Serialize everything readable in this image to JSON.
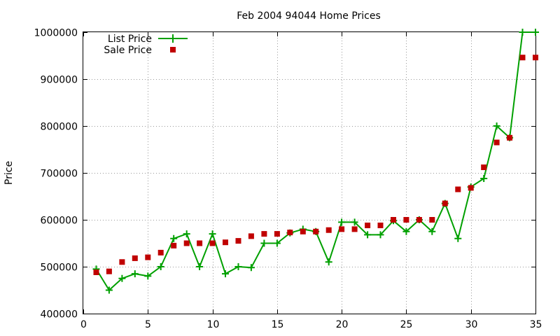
{
  "chart_data": {
    "type": "line",
    "title": "Feb 2004 94044 Home Prices",
    "xlabel": "",
    "ylabel": "Price",
    "xlim": [
      0,
      35
    ],
    "ylim": [
      400000,
      1000000
    ],
    "xticks": [
      0,
      5,
      10,
      15,
      20,
      25,
      30,
      35
    ],
    "yticks": [
      400000,
      500000,
      600000,
      700000,
      800000,
      900000,
      1000000
    ],
    "grid": true,
    "legend_position": "top-left",
    "series": [
      {
        "name": "List Price",
        "style": "linespoints",
        "color": "#00a000",
        "marker": "plus",
        "x": [
          1,
          2,
          3,
          4,
          5,
          6,
          7,
          8,
          9,
          10,
          11,
          12,
          13,
          14,
          15,
          16,
          17,
          18,
          19,
          20,
          21,
          22,
          23,
          24,
          25,
          26,
          27,
          28,
          29,
          30,
          31,
          32,
          33,
          34,
          35
        ],
        "values": [
          495000,
          450000,
          475000,
          485000,
          480000,
          500000,
          560000,
          570000,
          500000,
          570000,
          485000,
          500000,
          498000,
          550000,
          550000,
          572000,
          580000,
          575000,
          510000,
          595000,
          595000,
          568000,
          568000,
          598000,
          575000,
          600000,
          575000,
          635000,
          560000,
          670000,
          688000,
          800000,
          775000,
          1000000,
          1000000
        ]
      },
      {
        "name": "Sale Price",
        "style": "points",
        "color": "#c00000",
        "marker": "square",
        "x": [
          1,
          2,
          3,
          4,
          5,
          6,
          7,
          8,
          9,
          10,
          11,
          12,
          13,
          14,
          15,
          16,
          17,
          18,
          19,
          20,
          21,
          22,
          23,
          24,
          25,
          26,
          27,
          28,
          29,
          30,
          31,
          32,
          33,
          34,
          35
        ],
        "values": [
          488000,
          490000,
          510000,
          518000,
          520000,
          530000,
          545000,
          550000,
          550000,
          550000,
          552000,
          555000,
          565000,
          570000,
          570000,
          573000,
          575000,
          575000,
          578000,
          580000,
          580000,
          588000,
          588000,
          600000,
          600000,
          600000,
          600000,
          635000,
          665000,
          668000,
          712000,
          765000,
          775000,
          946000,
          946000
        ]
      }
    ]
  }
}
